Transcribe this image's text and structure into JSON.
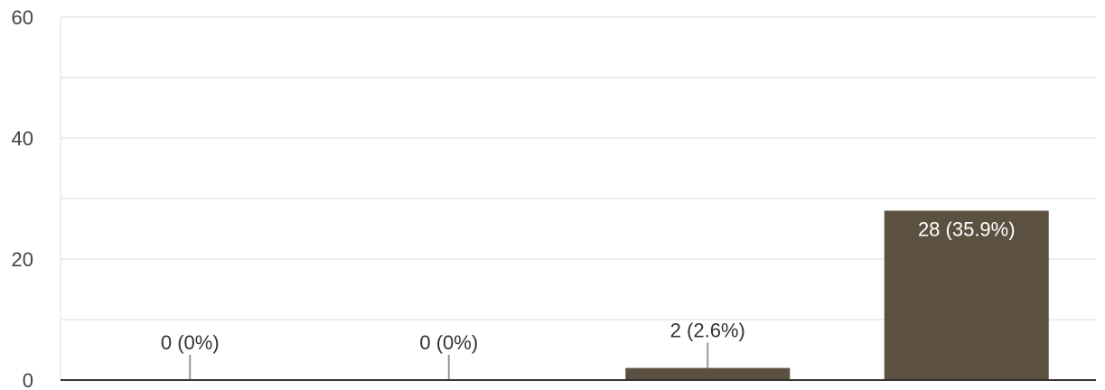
{
  "chart_data": {
    "type": "bar",
    "categories": [
      "",
      "",
      "",
      ""
    ],
    "values": [
      0,
      0,
      2,
      28
    ],
    "data_labels": [
      "0 (0%)",
      "0 (0%)",
      "2 (2.6%)",
      "28 (35.9%)"
    ],
    "yticks": [
      0,
      20,
      40,
      60
    ],
    "ylim": [
      0,
      60
    ],
    "grid": true,
    "minor_grid_step": 10,
    "legend": "none",
    "title": "",
    "xlabel": "",
    "ylabel": "",
    "bar_color": "#5c5140",
    "label_color_inside": "#ffffff",
    "label_color_outside": "#333333",
    "grid_color": "#eeeeee",
    "axis_color": "#333333",
    "leader_color": "#999999"
  }
}
